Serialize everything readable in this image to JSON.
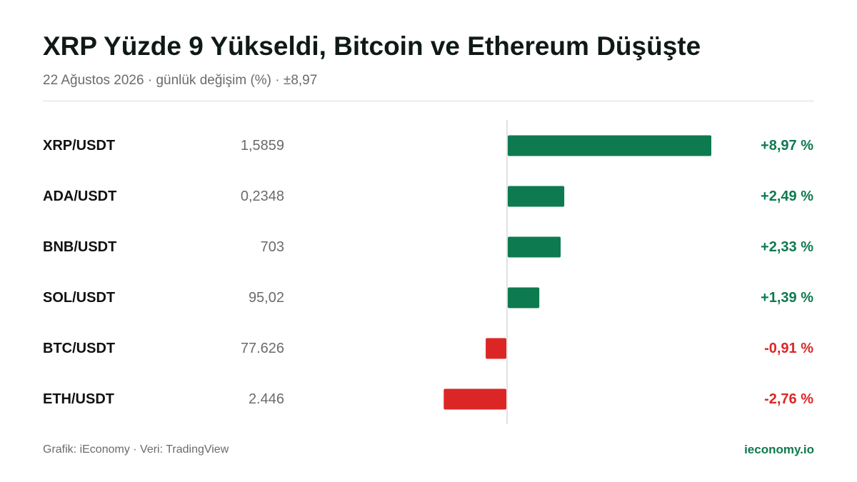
{
  "header": {
    "title": "XRP Yüzde 9 Yükseldi, Bitcoin ve Ethereum Düşüşte",
    "subtitle": "22 Ağustos 2026 · günlük değişim (%) · ±8,97"
  },
  "footer": {
    "credit": "Grafik: iEconomy · Veri: TradingView",
    "brand": "ieconomy.io"
  },
  "colors": {
    "positive": "#0e7a4f",
    "negative": "#dc2626",
    "brand": "#0e7a4f",
    "axis": "#d9d9d9"
  },
  "chart_data": {
    "type": "bar",
    "orientation": "horizontal",
    "categories": [
      "XRP/USDT",
      "ADA/USDT",
      "BNB/USDT",
      "SOL/USDT",
      "BTC/USDT",
      "ETH/USDT"
    ],
    "prices": [
      "1,5859",
      "0,2348",
      "703",
      "95,02",
      "77.626",
      "2.446"
    ],
    "values": [
      8.97,
      2.49,
      2.33,
      1.39,
      -0.91,
      -2.76
    ],
    "value_labels": [
      "+8,97 %",
      "+2,49 %",
      "+2,33 %",
      "+1,39 %",
      "-0,91 %",
      "-2,76 %"
    ],
    "xlim": [
      -8.97,
      8.97
    ],
    "grid": false,
    "legend": "none"
  }
}
